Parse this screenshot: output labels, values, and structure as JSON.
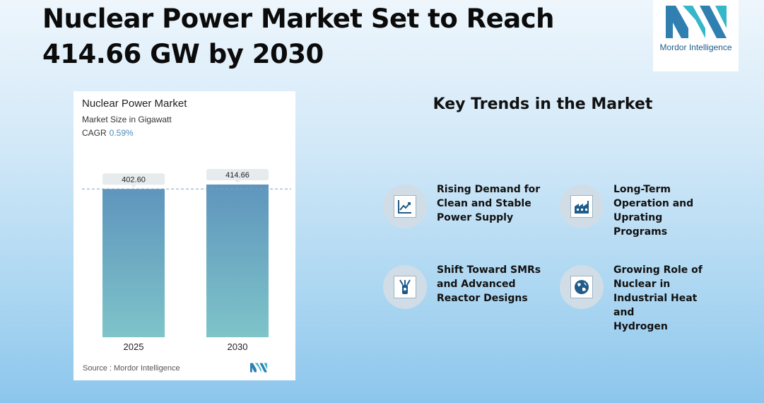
{
  "headline": {
    "line1": "Nuclear Power Market Set to Reach",
    "line2": "414.66 GW by 2030"
  },
  "logo": {
    "text": "Mordor Intelligence",
    "icon": "mordor-logo-icon",
    "colors": [
      "#2f7fb0",
      "#36b7c9"
    ]
  },
  "chart_data": {
    "type": "bar",
    "title": "Nuclear Power Market",
    "subtitle": "Market Size in Gigawatt",
    "cagr_label": "CAGR",
    "cagr_value": "0.59%",
    "categories": [
      "2025",
      "2030"
    ],
    "values": [
      402.6,
      414.66
    ],
    "value_labels": [
      "402.60",
      "414.66"
    ],
    "ylim": [
      0,
      414.66
    ],
    "grid": false,
    "reference_line": "dashed line at 2025 value",
    "bar_gradient": [
      "#5f95bd",
      "#7ec4c9"
    ],
    "source": "Source :  Mordor Intelligence"
  },
  "trends": {
    "title": "Key Trends in the Market",
    "items": [
      {
        "icon": "line-chart-icon",
        "lines": [
          "Rising Demand for",
          "Clean and Stable",
          "Power Supply"
        ]
      },
      {
        "icon": "factory-icon",
        "lines": [
          "Long-Term",
          "Operation and",
          "Uprating Programs"
        ]
      },
      {
        "icon": "reactor-icon",
        "lines": [
          "Shift Toward SMRs",
          "and Advanced",
          "Reactor Designs"
        ]
      },
      {
        "icon": "globe-icon",
        "lines": [
          "Growing Role of",
          "Nuclear in",
          "Industrial Heat and",
          "Hydrogen"
        ]
      }
    ]
  }
}
